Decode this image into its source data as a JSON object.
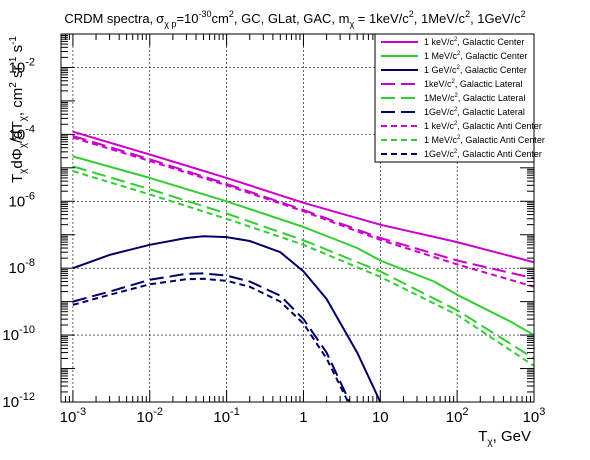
{
  "chart_data": {
    "type": "line",
    "title": "CRDM spectra, σ_χ p=10^-30cm², GC, GLat, GAC, m_χ = 1keV/c², 1MeV/c², 1GeV/c²",
    "title_parts": {
      "t1": "CRDM spectra,",
      "sigma": "σ",
      "sub1": "χ p",
      "t2": "=10",
      "sup1": "-30",
      "t3": "cm",
      "sup2": "2",
      "t4": ", GC, GLat, GAC, m",
      "sub2": "χ",
      "t5": " = 1keV/c",
      "sup3": "2",
      "t6": ", 1MeV/c",
      "sup4": "2",
      "t7": ", 1GeV/c",
      "sup5": "2"
    },
    "xlabel": "T_χ, GeV",
    "xlabel_parts": {
      "main": "T",
      "sub": "χ",
      "rest": ", GeV"
    },
    "ylabel": "T_χdΦ_χ/dT_χ, cm² sr⁻¹ s⁻¹",
    "ylabel_parts": {
      "a": "T",
      "sa": "χ",
      "b": "dΦ",
      "sb": "χ",
      "c": "/dT",
      "sc": "χ",
      "d": ", cm",
      "sd": "2",
      "e": " sr",
      "se": "-1",
      "f": " s",
      "sf": "-1"
    },
    "x_scale": "log",
    "y_scale": "log",
    "xlim": [
      0.0007,
      1000
    ],
    "ylim": [
      1e-12,
      0.1
    ],
    "grid": true,
    "legend_position": "top-right",
    "x_ticks": [
      {
        "value": 0.001,
        "base": "10",
        "exp": "-3"
      },
      {
        "value": 0.01,
        "base": "10",
        "exp": "-2"
      },
      {
        "value": 0.1,
        "base": "10",
        "exp": "-1"
      },
      {
        "value": 1,
        "base": "1",
        "exp": ""
      },
      {
        "value": 10,
        "base": "10",
        "exp": ""
      },
      {
        "value": 100,
        "base": "10",
        "exp": "2"
      },
      {
        "value": 1000,
        "base": "10",
        "exp": "3"
      }
    ],
    "y_ticks": [
      {
        "value": 1e-12,
        "base": "10",
        "exp": "-12"
      },
      {
        "value": 1e-10,
        "base": "10",
        "exp": "-10"
      },
      {
        "value": 1e-08,
        "base": "10",
        "exp": "-8"
      },
      {
        "value": 1e-06,
        "base": "10",
        "exp": "-6"
      },
      {
        "value": 0.0001,
        "base": "10",
        "exp": "-4"
      },
      {
        "value": 0.01,
        "base": "10",
        "exp": "-2"
      }
    ],
    "series": [
      {
        "name": "1 keV/c², Galactic Center",
        "legend_parts": {
          "pre": "1 keV/c",
          "sup": "2",
          "post": ", Galactic Center"
        },
        "color": "#cc00cc",
        "dash": "solid",
        "x": [
          0.001,
          0.01,
          0.1,
          1,
          10,
          100,
          1000
        ],
        "y": [
          0.00012,
          2.5e-05,
          5e-06,
          9e-07,
          2e-07,
          6e-08,
          1.5e-08
        ]
      },
      {
        "name": "1 MeV/c², Galactic Center",
        "legend_parts": {
          "pre": "1 MeV/c",
          "sup": "2",
          "post": ", Galactic Center"
        },
        "color": "#33cc33",
        "dash": "solid",
        "x": [
          0.001,
          0.01,
          0.1,
          1,
          5,
          10,
          50,
          100,
          500,
          1000
        ],
        "y": [
          2.2e-05,
          5e-06,
          1e-06,
          1.7e-07,
          4e-08,
          1.7e-08,
          4e-09,
          1.6e-09,
          2.5e-10,
          1e-10
        ]
      },
      {
        "name": "1 GeV/c², Galactic Center",
        "legend_parts": {
          "pre": "1 GeV/c",
          "sup": "2",
          "post": ", Galactic Center"
        },
        "color": "#000066",
        "dash": "solid",
        "x": [
          0.001,
          0.003,
          0.01,
          0.03,
          0.05,
          0.1,
          0.2,
          0.5,
          1,
          2,
          5,
          10
        ],
        "y": [
          1e-08,
          2.5e-08,
          5e-08,
          8e-08,
          9e-08,
          8.5e-08,
          6.5e-08,
          3e-08,
          8e-09,
          1.2e-09,
          3e-11,
          1e-12
        ]
      },
      {
        "name": "1keV/c², Galactic Lateral",
        "legend_parts": {
          "pre": "1keV/c",
          "sup": "2",
          "post": ", Galactic Lateral"
        },
        "color": "#cc00cc",
        "dash": "long",
        "x": [
          0.001,
          0.01,
          0.1,
          1,
          10,
          100,
          1000
        ],
        "y": [
          9e-05,
          1.8e-05,
          3.3e-06,
          5.5e-07,
          8e-08,
          1.7e-08,
          5e-09
        ]
      },
      {
        "name": "1MeV/c², Galactic Lateral",
        "legend_parts": {
          "pre": "1MeV/c",
          "sup": "2",
          "post": ", Galactic Lateral"
        },
        "color": "#33cc33",
        "dash": "long",
        "x": [
          0.001,
          0.01,
          0.1,
          1,
          10,
          100,
          1000
        ],
        "y": [
          1.1e-05,
          2.3e-06,
          4.3e-07,
          6.8e-08,
          8e-09,
          5.5e-10,
          2e-11
        ]
      },
      {
        "name": "1GeV/c², Galactic Lateral",
        "legend_parts": {
          "pre": "1GeV/c",
          "sup": "2",
          "post": ", Galactic Lateral"
        },
        "color": "#000066",
        "dash": "long",
        "x": [
          0.001,
          0.003,
          0.01,
          0.03,
          0.05,
          0.1,
          0.2,
          0.5,
          1,
          2,
          4,
          6
        ],
        "y": [
          1e-09,
          2e-09,
          4.5e-09,
          6.8e-09,
          7e-09,
          6e-09,
          4e-09,
          1.5e-09,
          3e-10,
          3e-11,
          1e-12,
          1e-13
        ]
      },
      {
        "name": "1 keV/c², Galactic Anti Center",
        "legend_parts": {
          "pre": "1 keV/c",
          "sup": "2",
          "post": ", Galactic Anti Center"
        },
        "color": "#cc00cc",
        "dash": "short",
        "x": [
          0.001,
          0.01,
          0.1,
          1,
          10,
          100,
          1000
        ],
        "y": [
          8e-05,
          1.6e-05,
          3e-06,
          5e-07,
          7e-08,
          1.3e-08,
          2.8e-09
        ]
      },
      {
        "name": "1 MeV/c², Galactic Anti Center",
        "legend_parts": {
          "pre": "1 MeV/c",
          "sup": "2",
          "post": ", Galactic Anti Center"
        },
        "color": "#33cc33",
        "dash": "short",
        "x": [
          0.001,
          0.01,
          0.1,
          1,
          10,
          100,
          1000
        ],
        "y": [
          8e-06,
          1.6e-06,
          3e-07,
          5e-08,
          5.5e-09,
          4e-10,
          1.2e-11
        ]
      },
      {
        "name": "1GeV/c², Galactic Anti Center",
        "legend_parts": {
          "pre": "1GeV/c",
          "sup": "2",
          "post": ", Galactic Anti Center"
        },
        "color": "#000066",
        "dash": "short",
        "x": [
          0.001,
          0.003,
          0.01,
          0.03,
          0.05,
          0.1,
          0.2,
          0.5,
          1,
          2,
          4,
          6
        ],
        "y": [
          8e-10,
          1.6e-09,
          3.3e-09,
          4.7e-09,
          4.8e-09,
          4.2e-09,
          2.8e-09,
          1e-09,
          2.2e-10,
          2e-11,
          8e-13,
          5e-14
        ]
      }
    ]
  }
}
